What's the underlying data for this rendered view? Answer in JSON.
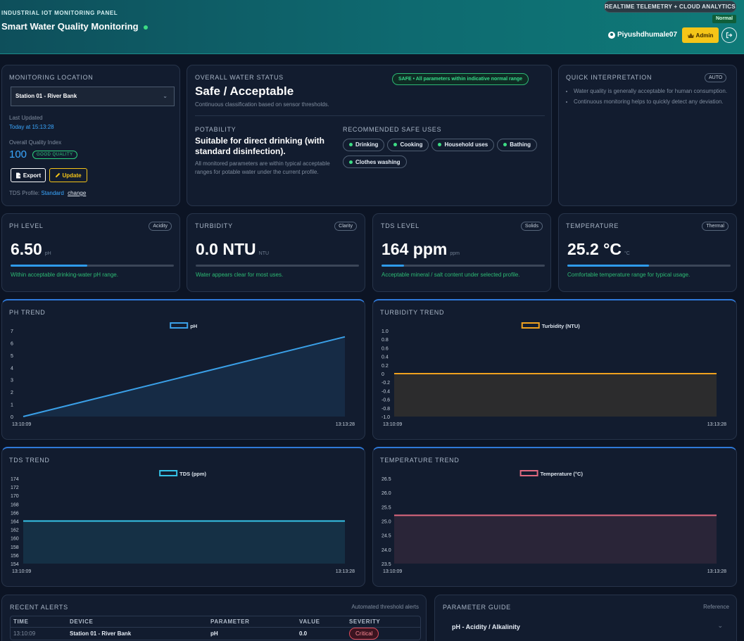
{
  "header": {
    "kicker": "INDUSTRIAL IOT MONITORING PANEL",
    "title": "Smart Water Quality Monitoring",
    "telemetry_pill": "REALTIME TELEMETRY + CLOUD ANALYTICS",
    "status_badge": "Normal",
    "username": "Piyushdhumale07",
    "admin_label": "Admin"
  },
  "location": {
    "label": "MONITORING LOCATION",
    "selected_station": "Station 01 - River Bank",
    "last_updated_label": "Last Updated",
    "last_updated_value": "Today at 15:13:28",
    "quality_index_label": "Overall Quality Index",
    "quality_index_value": "100",
    "quality_badge": "GOOD QUALITY",
    "export_label": "Export",
    "update_label": "Update",
    "tds_profile_label": "TDS Profile:",
    "tds_profile_value": "Standard",
    "change_label": "change"
  },
  "status": {
    "label": "OVERALL WATER STATUS",
    "value": "Safe / Acceptable",
    "subtitle": "Continuous classification based on sensor thresholds.",
    "safe_badge": "SAFE • All parameters within indicative normal range",
    "potability_label": "POTABILITY",
    "potability_value": "Suitable for direct drinking (with standard disinfection).",
    "potability_note": "All monitored parameters are within typical acceptable ranges for potable water under the current profile.",
    "uses_label": "RECOMMENDED SAFE USES",
    "uses": [
      "Drinking",
      "Cooking",
      "Household uses",
      "Bathing",
      "Clothes washing"
    ]
  },
  "interpretation": {
    "label": "QUICK INTERPRETATION",
    "mode_badge": "AUTO",
    "points": [
      "Water quality is generally acceptable for human consumption.",
      "Continuous monitoring helps to quickly detect any deviation."
    ]
  },
  "metrics": [
    {
      "label": "PH LEVEL",
      "tag": "Acidity",
      "value": "6.50",
      "unit": "pH",
      "fill": 0.47,
      "note": "Within acceptable drinking-water pH range."
    },
    {
      "label": "TURBIDITY",
      "tag": "Clarity",
      "value": "0.0 NTU",
      "unit": "NTU",
      "fill": 0.0,
      "note": "Water appears clear for most uses."
    },
    {
      "label": "TDS LEVEL",
      "tag": "Solids",
      "value": "164 ppm",
      "unit": "ppm",
      "fill": 0.14,
      "note": "Acceptable mineral / salt content under selected profile."
    },
    {
      "label": "TEMPERATURE",
      "tag": "Thermal",
      "value": "25.2 °C",
      "unit": "°C",
      "fill": 0.5,
      "note": "Comfortable temperature range for typical usage."
    }
  ],
  "chart_data": [
    {
      "type": "line",
      "title": "PH TREND",
      "legend": "pH",
      "color": "#3aa0e8",
      "x": [
        "13:10:09",
        "13:13:28"
      ],
      "series": [
        {
          "name": "pH",
          "values": [
            0,
            6.5
          ]
        }
      ],
      "yticks": [
        "7",
        "6",
        "5",
        "4",
        "3",
        "2",
        "1",
        "0"
      ],
      "ylim": [
        0,
        7
      ]
    },
    {
      "type": "line",
      "title": "TURBIDITY TREND",
      "legend": "Turbidity (NTU)",
      "color": "#f0a21f",
      "x": [
        "13:10:09",
        "13:13:28"
      ],
      "series": [
        {
          "name": "Turbidity (NTU)",
          "values": [
            0,
            0
          ]
        }
      ],
      "yticks": [
        "1.0",
        "0.8",
        "0.6",
        "0.4",
        "0.2",
        "0",
        "-0.2",
        "-0.4",
        "-0.6",
        "-0.8",
        "-1.0"
      ],
      "ylim": [
        -1,
        1
      ]
    },
    {
      "type": "line",
      "title": "TDS TREND",
      "legend": "TDS (ppm)",
      "color": "#35c3e8",
      "x": [
        "13:10:09",
        "13:13:28"
      ],
      "series": [
        {
          "name": "TDS (ppm)",
          "values": [
            164,
            164
          ]
        }
      ],
      "yticks": [
        "174",
        "172",
        "170",
        "168",
        "166",
        "164",
        "162",
        "160",
        "158",
        "156",
        "154"
      ],
      "ylim": [
        154,
        174
      ]
    },
    {
      "type": "line",
      "title": "TEMPERATURE TREND",
      "legend": "Temperature (°C)",
      "color": "#e0697f",
      "x": [
        "13:10:09",
        "13:13:28"
      ],
      "series": [
        {
          "name": "Temperature (°C)",
          "values": [
            25.2,
            25.2
          ]
        }
      ],
      "yticks": [
        "26.5",
        "26.0",
        "25.5",
        "25.0",
        "24.5",
        "24.0",
        "23.5"
      ],
      "ylim": [
        23.5,
        26.5
      ]
    }
  ],
  "alerts": {
    "label": "RECENT ALERTS",
    "caption": "Automated threshold alerts",
    "columns": [
      "TIME",
      "DEVICE",
      "PARAMETER",
      "VALUE",
      "SEVERITY"
    ],
    "rows": [
      {
        "time": "13:10:09",
        "device": "Station 01 - River Bank",
        "parameter": "pH",
        "value": "0.0",
        "severity": "Critical"
      }
    ]
  },
  "guide": {
    "label": "PARAMETER GUIDE",
    "caption": "Reference",
    "items": [
      "pH - Acidity / Alkalinity"
    ]
  },
  "colors": {
    "accent_blue": "#2f79d8",
    "safe_green": "#3ddc84",
    "admin_yellow": "#f5c518",
    "critical_red": "#e04b5a"
  }
}
